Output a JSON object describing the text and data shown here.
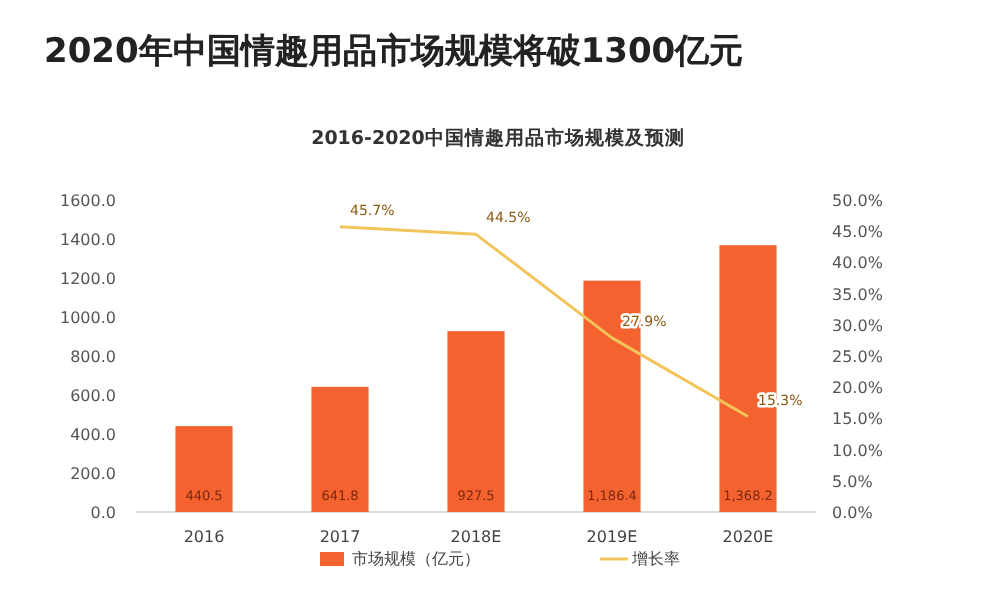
{
  "chart_data": {
    "type": "bar",
    "title": "2020年中国情趣用品市场规模将破1300亿元",
    "subtitle": "2016-2020中国情趣用品市场规模及预测",
    "categories": [
      "2016",
      "2017",
      "2018E",
      "2019E",
      "2020E"
    ],
    "series": [
      {
        "name": "市场规模（亿元）",
        "color": "#f4622f",
        "values": [
          440.5,
          641.8,
          927.5,
          1186.4,
          1368.2
        ],
        "value_labels": [
          "440.5",
          "641.8",
          "927.5",
          "1,186.4",
          "1,368.2"
        ]
      },
      {
        "name": "增长率",
        "type": "line",
        "axis": "y2",
        "color": "#f2c45a",
        "values": [
          null,
          45.7,
          44.5,
          27.9,
          15.3
        ],
        "value_labels": [
          null,
          "45.7%",
          "44.5%",
          "27.9%",
          "15.3%"
        ]
      }
    ],
    "ylim": [
      0,
      1600
    ],
    "yticks": [
      {
        "value": 0,
        "label": "0.0"
      },
      {
        "value": 200,
        "label": "200.0"
      },
      {
        "value": 400,
        "label": "400.0"
      },
      {
        "value": 600,
        "label": "600.0"
      },
      {
        "value": 800,
        "label": "800.0"
      },
      {
        "value": 1000,
        "label": "1000.0"
      },
      {
        "value": 1200,
        "label": "1200.0"
      },
      {
        "value": 1400,
        "label": "1400.0"
      },
      {
        "value": 1600,
        "label": "1600.0"
      }
    ],
    "y2lim": [
      0,
      50
    ],
    "y2ticks": [
      {
        "value": 0,
        "label": "0.0%"
      },
      {
        "value": 5,
        "label": "5.0%"
      },
      {
        "value": 10,
        "label": "10.0%"
      },
      {
        "value": 15,
        "label": "15.0%"
      },
      {
        "value": 20,
        "label": "20.0%"
      },
      {
        "value": 25,
        "label": "25.0%"
      },
      {
        "value": 30,
        "label": "30.0%"
      },
      {
        "value": 35,
        "label": "35.0%"
      },
      {
        "value": 40,
        "label": "40.0%"
      },
      {
        "value": 45,
        "label": "45.0%"
      },
      {
        "value": 50,
        "label": "50.0%"
      }
    ],
    "legend": "bottom"
  }
}
